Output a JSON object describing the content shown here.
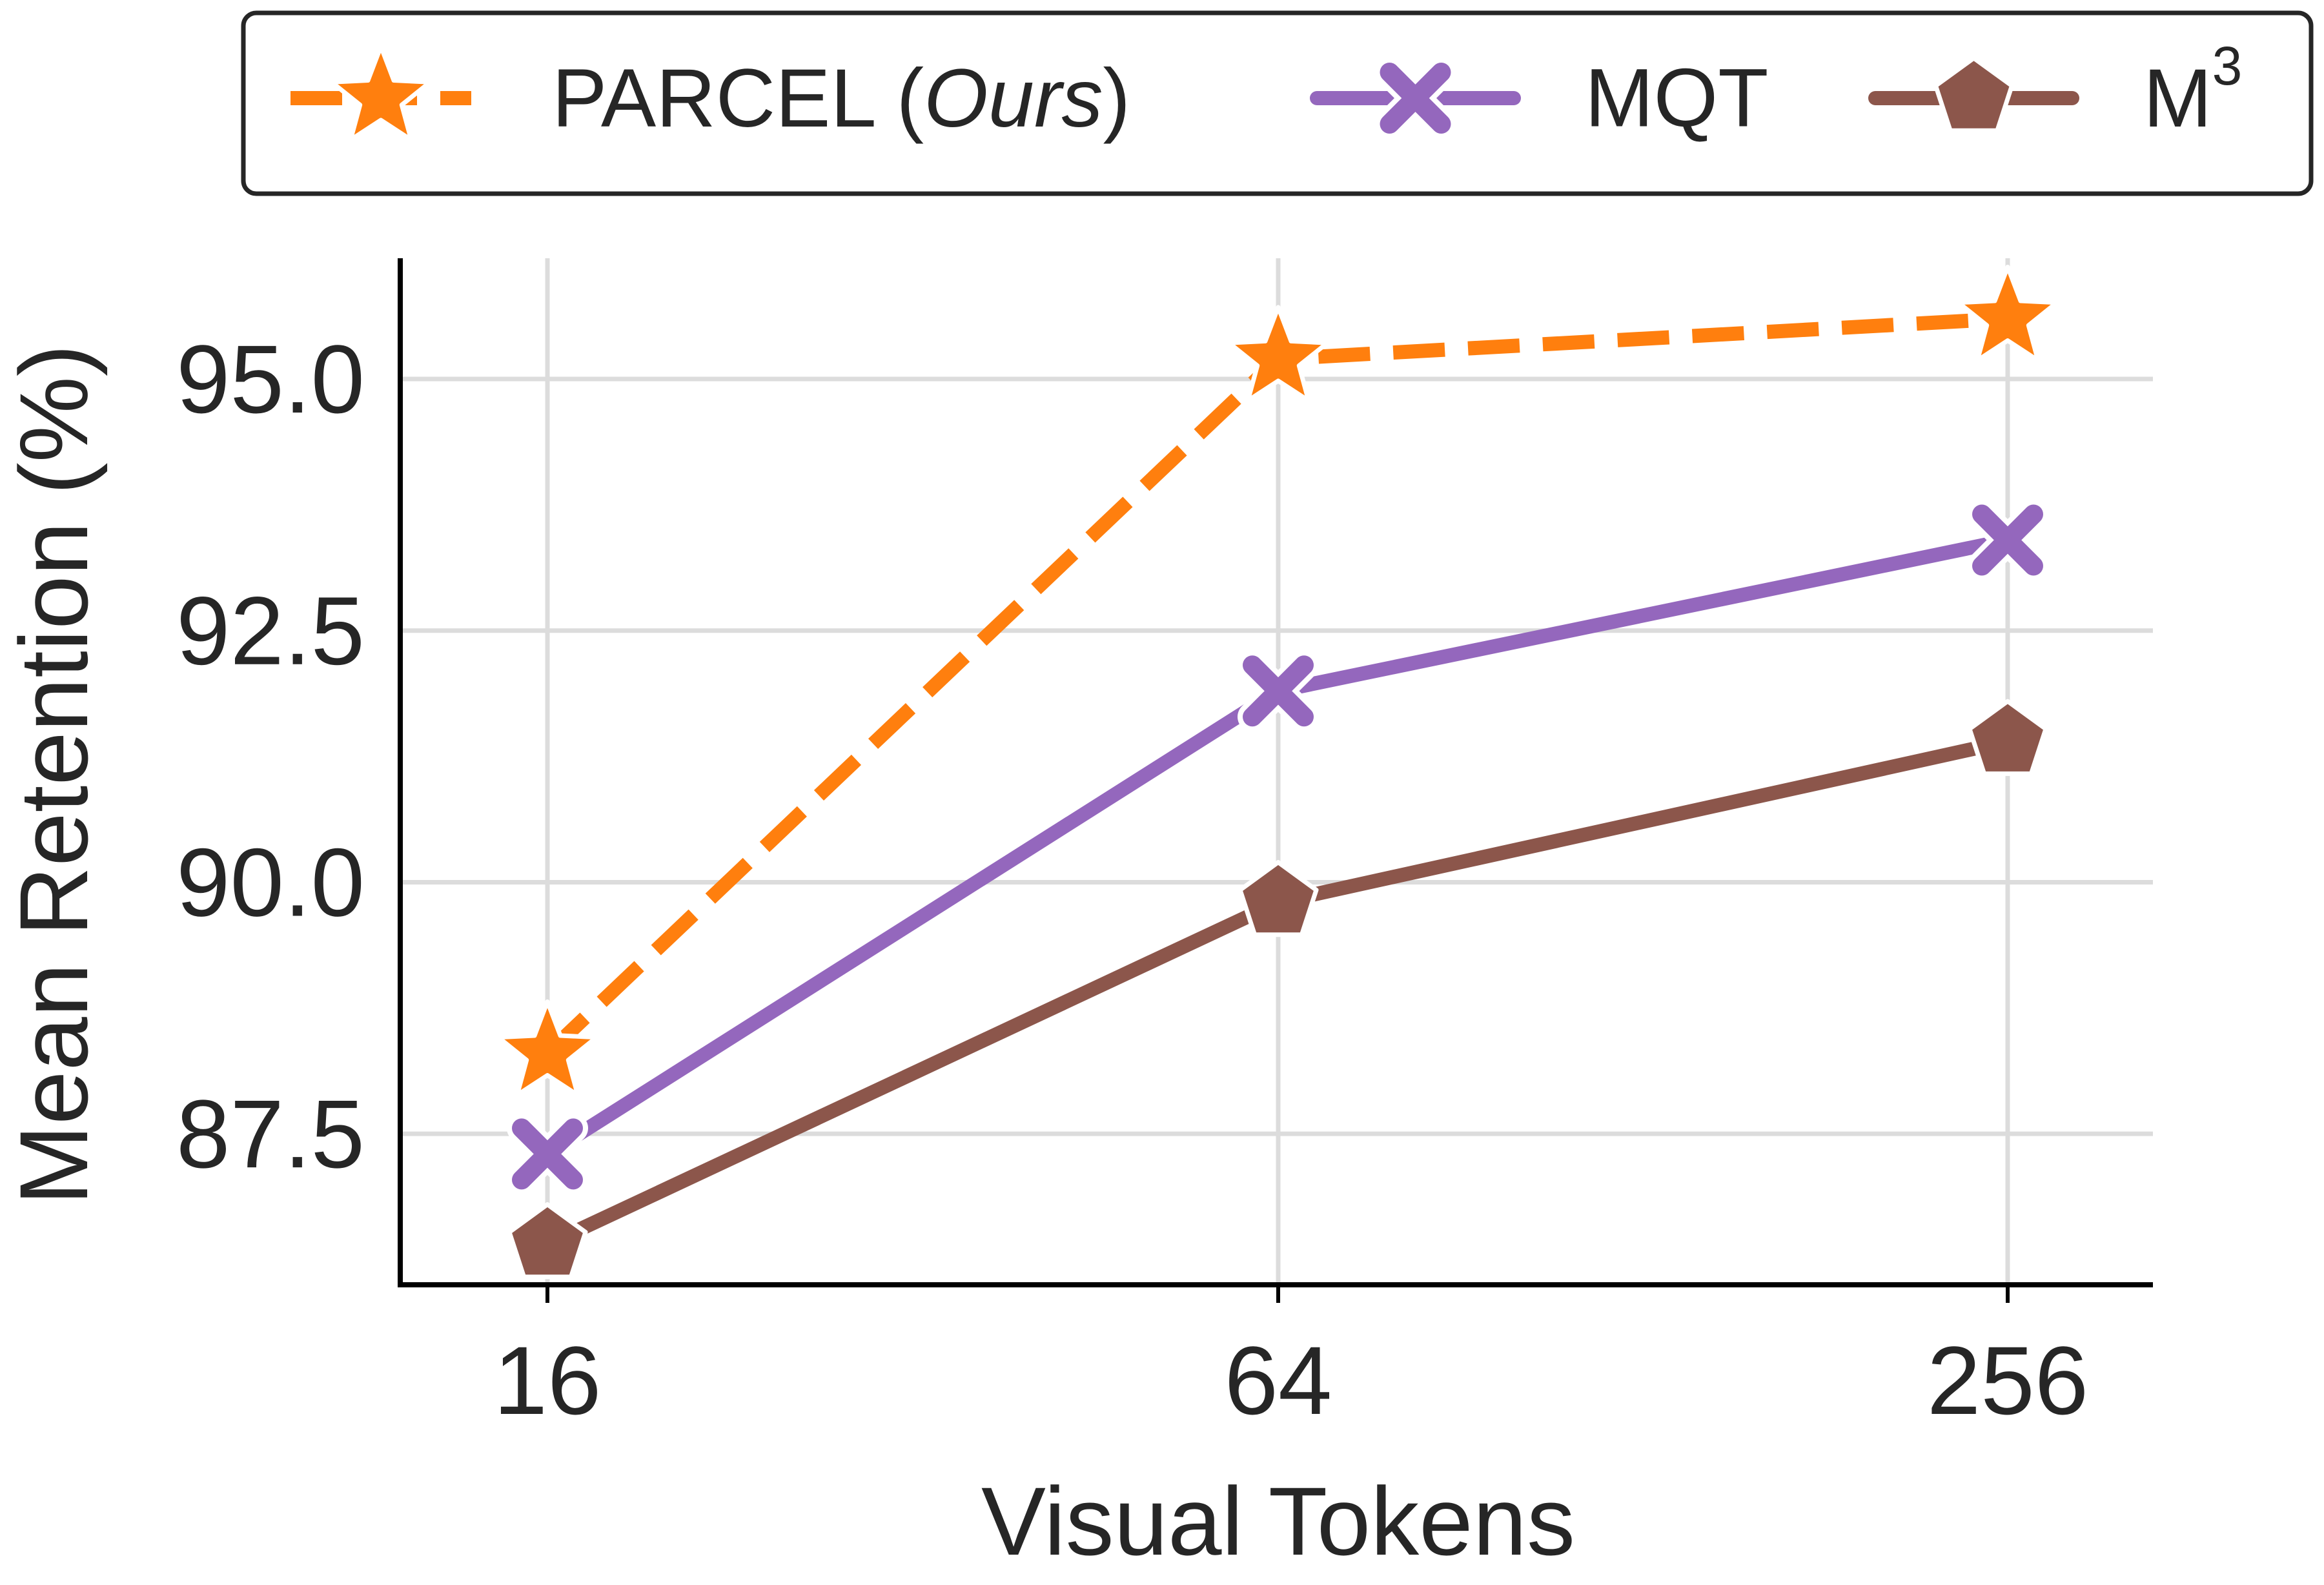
{
  "chart_data": {
    "type": "line",
    "xlabel": "Visual Tokens",
    "ylabel": "Mean Retention (%)",
    "categories": [
      "16",
      "64",
      "256"
    ],
    "yticks": [
      "87.5",
      "90.0",
      "92.5",
      "95.0"
    ],
    "ylim": [
      86.0,
      96.2
    ],
    "grid": true,
    "legend_position": "top",
    "series": [
      {
        "name": "PARCEL (Ours)",
        "name_plain": "PARCEL (",
        "name_italic": "Ours",
        "name_close": ")",
        "values": [
          88.3,
          95.2,
          95.6
        ],
        "color": "#ff7f0e",
        "marker": "star",
        "linestyle": "dashed"
      },
      {
        "name": "MQT",
        "values": [
          87.3,
          91.9,
          93.4
        ],
        "color": "#9467bd",
        "marker": "x",
        "linestyle": "solid"
      },
      {
        "name": "M3",
        "name_base": "M",
        "name_sup": "3",
        "values": [
          86.4,
          89.8,
          91.4
        ],
        "color": "#8c564b",
        "marker": "pentagon",
        "linestyle": "solid"
      }
    ]
  }
}
